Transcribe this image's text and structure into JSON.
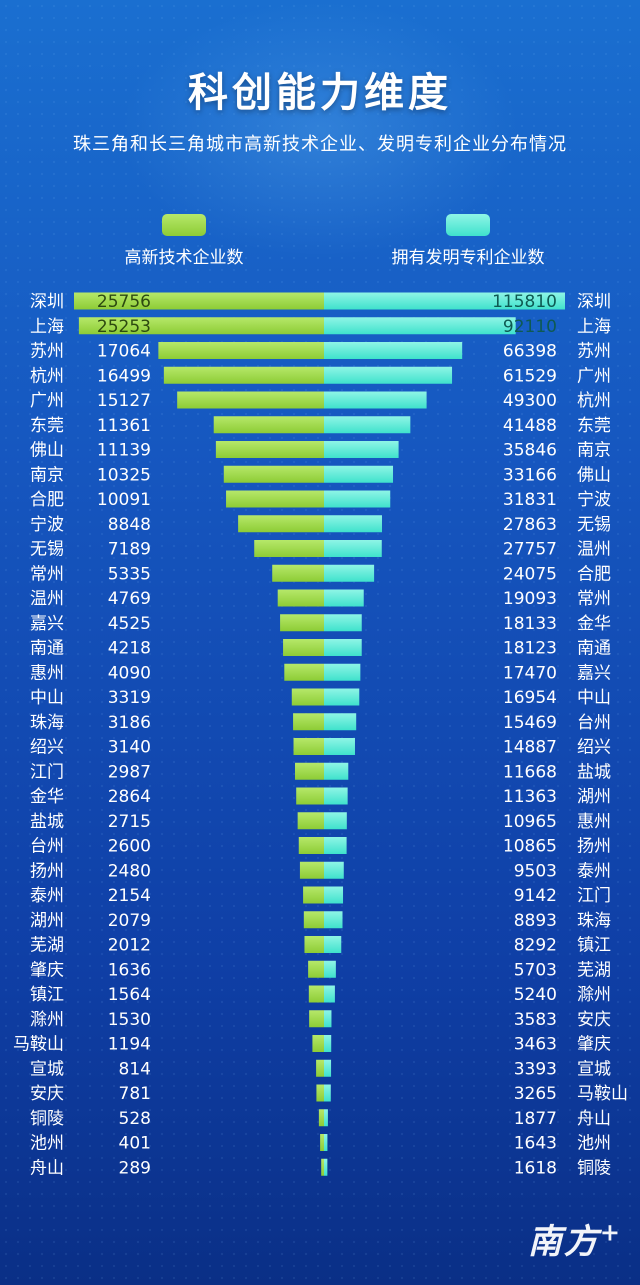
{
  "title": "科创能力维度",
  "subtitle": "珠三角和长三角城市高新技术企业、发明专利企业分布情况",
  "legend": {
    "left_label": "高新技术企业数",
    "right_label": "拥有发明专利企业数"
  },
  "colors": {
    "left_bar": "#8dcc35",
    "right_bar": "#3fe2cc",
    "background": "#1657c0"
  },
  "logo": "南方+",
  "chart_data": {
    "type": "bar",
    "orientation": "horizontal-mirrored",
    "series": [
      {
        "name": "高新技术企业数",
        "categories": [
          "深圳",
          "上海",
          "苏州",
          "杭州",
          "广州",
          "东莞",
          "佛山",
          "南京",
          "合肥",
          "宁波",
          "无锡",
          "常州",
          "温州",
          "嘉兴",
          "南通",
          "惠州",
          "中山",
          "珠海",
          "绍兴",
          "江门",
          "金华",
          "盐城",
          "台州",
          "扬州",
          "泰州",
          "湖州",
          "芜湖",
          "肇庆",
          "镇江",
          "滁州",
          "马鞍山",
          "宣城",
          "安庆",
          "铜陵",
          "池州",
          "舟山"
        ],
        "values": [
          25756,
          25253,
          17064,
          16499,
          15127,
          11361,
          11139,
          10325,
          10091,
          8848,
          7189,
          5335,
          4769,
          4525,
          4218,
          4090,
          3319,
          3186,
          3140,
          2987,
          2864,
          2715,
          2600,
          2480,
          2154,
          2079,
          2012,
          1636,
          1564,
          1530,
          1194,
          814,
          781,
          528,
          401,
          289
        ]
      },
      {
        "name": "拥有发明专利企业数",
        "categories": [
          "深圳",
          "上海",
          "苏州",
          "广州",
          "杭州",
          "东莞",
          "南京",
          "佛山",
          "宁波",
          "无锡",
          "温州",
          "合肥",
          "常州",
          "金华",
          "南通",
          "嘉兴",
          "中山",
          "台州",
          "绍兴",
          "盐城",
          "湖州",
          "惠州",
          "扬州",
          "泰州",
          "江门",
          "珠海",
          "镇江",
          "芜湖",
          "滁州",
          "安庆",
          "肇庆",
          "宣城",
          "马鞍山",
          "舟山",
          "池州",
          "铜陵"
        ],
        "values": [
          115810,
          92110,
          66398,
          61529,
          49300,
          41488,
          35846,
          33166,
          31831,
          27863,
          27757,
          24075,
          19093,
          18133,
          18123,
          17470,
          16954,
          15469,
          14887,
          11668,
          11363,
          10965,
          10865,
          9503,
          9142,
          8893,
          8292,
          5703,
          5240,
          3583,
          3463,
          3393,
          3265,
          1877,
          1643,
          1618
        ]
      }
    ]
  }
}
